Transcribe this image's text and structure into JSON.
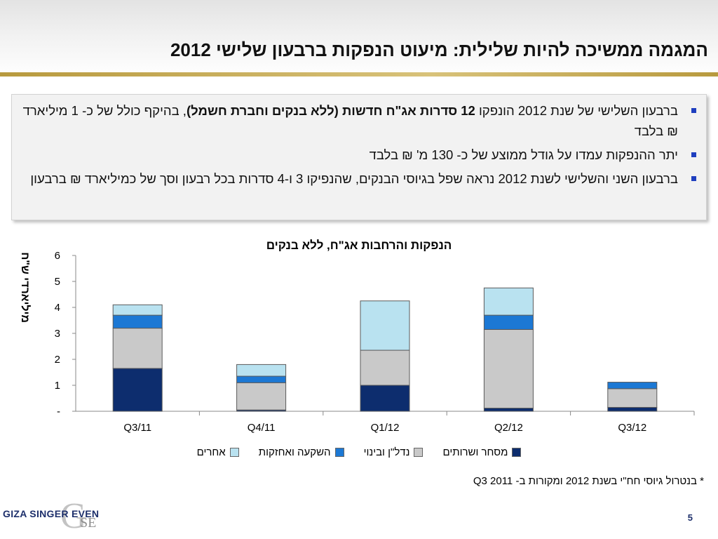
{
  "header": {
    "title": "המגמה ממשיכה להיות שלילית: מיעוט הנפקות ברבעון שלישי 2012"
  },
  "bullets": [
    {
      "pre": "ברבעון השלישי של שנת 2012 הונפקו ",
      "bold": "12 סדרות אג\"ח חדשות (ללא בנקים וחברת חשמל)",
      "post": ", בהיקף כולל של כ- 1 מיליארד ₪ בלבד"
    },
    {
      "pre": "יתר ההנפקות עמדו על גודל ממוצע של כ- 130 מ' ₪ בלבד",
      "bold": "",
      "post": ""
    },
    {
      "pre": "ברבעון השני והשלישי לשנת 2012 נראה שפל בגיוסי הבנקים, שהנפיקו 3 ו-4 סדרות בכל רבעון וסך של כמיליארד ₪ ברבעון",
      "bold": "",
      "post": ""
    }
  ],
  "chart_data": {
    "type": "bar",
    "stacked": true,
    "title": "הנפקות והרחבות אג\"ח, ללא בנקים",
    "ylabel": "מיליארדי ש\"ח",
    "xlabel": "",
    "ylim": [
      0,
      6
    ],
    "yticks": [
      "-",
      "1",
      "2",
      "3",
      "4",
      "5",
      "6"
    ],
    "categories": [
      "Q3/11",
      "Q4/11",
      "Q1/12",
      "Q2/12",
      "Q3/12"
    ],
    "series": [
      {
        "name": "מסחר ושרותים",
        "color": "#0d2d6e",
        "values": [
          1.65,
          0.05,
          1.0,
          0.12,
          0.15
        ]
      },
      {
        "name": "נדל\"ן ובינוי",
        "color": "#c9c9c9",
        "values": [
          1.55,
          1.05,
          1.35,
          3.03,
          0.72
        ]
      },
      {
        "name": "השקעה ואחזקות",
        "color": "#1c78d4",
        "values": [
          0.5,
          0.25,
          0.0,
          0.55,
          0.25
        ]
      },
      {
        "name": "אחרים",
        "color": "#b9e2f0",
        "values": [
          0.4,
          0.45,
          1.9,
          1.05,
          0.0
        ]
      }
    ],
    "legend": "bottom",
    "grid": false
  },
  "footnote": "* בנטרול גיוסי חח\"י בשנת 2012 ומקורות ב- Q3 2011",
  "logo": {
    "text": "GIZA SINGER EVEN",
    "mark": "G",
    "sub": "SE"
  },
  "page_number": "5"
}
